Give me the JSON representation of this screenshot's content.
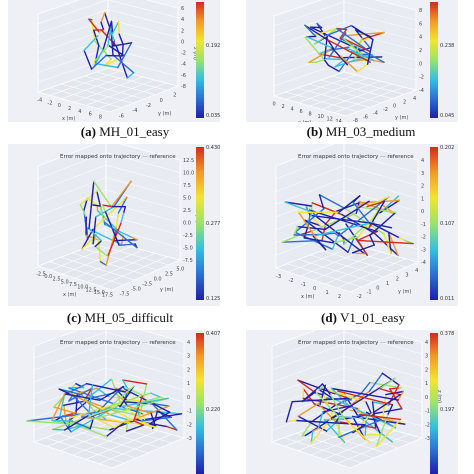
{
  "colors": {
    "panel_bg": "#eef0f6",
    "colormap": [
      "#1f1fa8",
      "#2a6fd6",
      "#35c0e0",
      "#9be36a",
      "#f2e531",
      "#f29a27",
      "#d42a1e"
    ]
  },
  "chart_data": [
    {
      "type": "line",
      "caption_letter": "(a)",
      "caption_name": "MH_01_easy",
      "legend_title": "",
      "legend_ref": "",
      "colorbar_ticks": [
        "0.192",
        "0.035"
      ],
      "axes": {
        "x_label": "x (m)",
        "y_label": "y (m)",
        "z_label": "z (m)",
        "x_ticks": [
          "-4",
          "-2",
          "0",
          "2",
          "4",
          "6",
          "8"
        ],
        "y_ticks": [
          "-6",
          "-4",
          "-2",
          "0",
          "2"
        ],
        "z_ticks": [
          "6",
          "4",
          "2",
          "0",
          "-2",
          "-4",
          "-6",
          "-8"
        ]
      }
    },
    {
      "type": "line",
      "caption_letter": "(b)",
      "caption_name": "MH_03_medium",
      "legend_title": "",
      "legend_ref": "",
      "colorbar_ticks": [
        "0.238",
        "0.045"
      ],
      "axes": {
        "x_label": "x (m)",
        "y_label": "y (m)",
        "z_label": "z (m)",
        "x_ticks": [
          "0",
          "2",
          "4",
          "6",
          "8",
          "10",
          "12",
          "14"
        ],
        "y_ticks": [
          "-8",
          "-6",
          "-4",
          "-2",
          "0",
          "2",
          "4"
        ],
        "z_ticks": [
          "8",
          "6",
          "4",
          "2",
          "0",
          "-2",
          "-4"
        ]
      }
    },
    {
      "type": "line",
      "caption_letter": "(c)",
      "caption_name": "MH_05_difficult",
      "legend_title": "Error mapped onto trajectory",
      "legend_ref": "reference",
      "colorbar_ticks": [
        "0.430",
        "0.277",
        "0.125"
      ],
      "axes": {
        "x_label": "x (m)",
        "y_label": "y (m)",
        "z_label": "z (m)",
        "x_ticks": [
          "-2.5",
          "0.0",
          "2.5",
          "5.0",
          "7.5",
          "10.0",
          "12.5",
          "15.0",
          "17.5"
        ],
        "y_ticks": [
          "-7.5",
          "-5.0",
          "-2.5",
          "0.0",
          "2.5",
          "5.0"
        ],
        "z_ticks": [
          "12.5",
          "10.0",
          "7.5",
          "5.0",
          "2.5",
          "0.0",
          "-2.5",
          "-5.0",
          "-7.5"
        ]
      }
    },
    {
      "type": "line",
      "caption_letter": "(d)",
      "caption_name": "V1_01_easy",
      "legend_title": "Error mapped onto trajectory",
      "legend_ref": "reference",
      "colorbar_ticks": [
        "0.202",
        "0.107",
        "0.011"
      ],
      "axes": {
        "x_label": "x (m)",
        "y_label": "y (m)",
        "z_label": "z (m)",
        "x_ticks": [
          "-3",
          "-2",
          "-1",
          "0",
          "1",
          "2"
        ],
        "y_ticks": [
          "-2",
          "-1",
          "0",
          "1",
          "2",
          "3",
          "4"
        ],
        "z_ticks": [
          "4",
          "3",
          "2",
          "1",
          "0",
          "-1",
          "-2",
          "-3",
          "-4"
        ]
      }
    },
    {
      "type": "line",
      "caption_letter": "",
      "caption_name": "",
      "legend_title": "Error mapped onto trajectory",
      "legend_ref": "reference",
      "colorbar_ticks": [
        "0.407",
        "0.220"
      ],
      "axes": {
        "x_label": "",
        "y_label": "",
        "z_label": "z (m)",
        "x_ticks": [],
        "y_ticks": [],
        "z_ticks": [
          "4",
          "3",
          "2",
          "1",
          "0",
          "-1",
          "-2",
          "-3"
        ]
      }
    },
    {
      "type": "line",
      "caption_letter": "",
      "caption_name": "",
      "legend_title": "Error mapped onto trajectory",
      "legend_ref": "reference",
      "colorbar_ticks": [
        "0.378",
        "0.197"
      ],
      "axes": {
        "x_label": "",
        "y_label": "",
        "z_label": "z (m)",
        "x_ticks": [],
        "y_ticks": [],
        "z_ticks": [
          "4",
          "3",
          "2",
          "1",
          "0",
          "-1",
          "-2",
          "-3"
        ]
      }
    }
  ]
}
